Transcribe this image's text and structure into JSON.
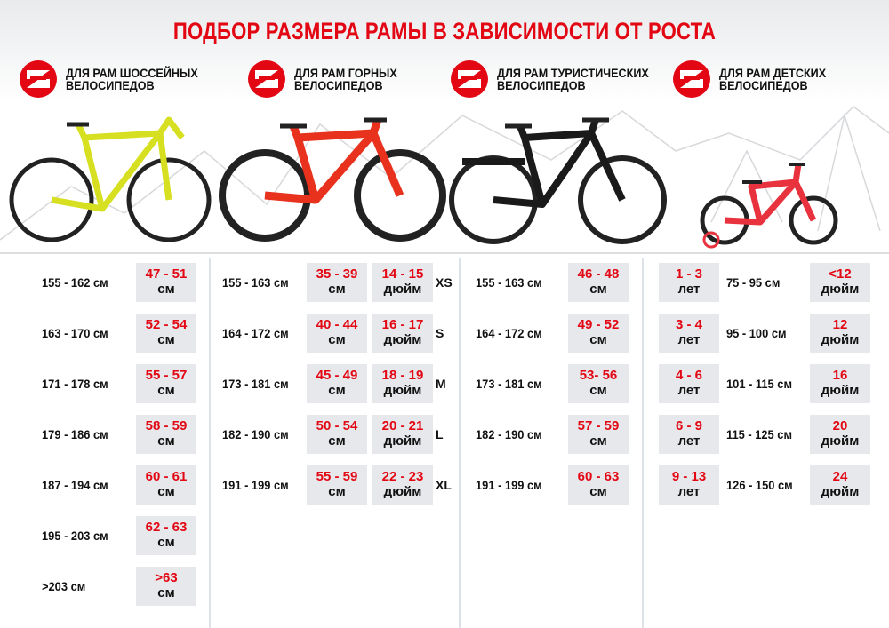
{
  "title": "ПОДБОР РАЗМЕРА РАМЫ В ЗАВИСИМОСТИ ОТ РОСТА",
  "colors": {
    "accent": "#e30613",
    "box": "#e6e8eb"
  },
  "categories": [
    {
      "label": "Для рам шоссейных велосипедов",
      "icon": "brand-logo-icon"
    },
    {
      "label": "Для рам горных велосипедов",
      "icon": "brand-logo-icon"
    },
    {
      "label": "Для рам туристических велосипедов",
      "icon": "brand-logo-icon"
    },
    {
      "label": "Для рам детских велосипедов",
      "icon": "brand-logo-icon"
    }
  ],
  "road": [
    {
      "height": "155 - 162 см",
      "frame": "47 - 51",
      "unit": "см"
    },
    {
      "height": "163 - 170 см",
      "frame": "52 - 54",
      "unit": "см"
    },
    {
      "height": "171 - 178 см",
      "frame": "55 - 57",
      "unit": "см"
    },
    {
      "height": "179 - 186 см",
      "frame": "58 - 59",
      "unit": "см"
    },
    {
      "height": "187 - 194 см",
      "frame": "60 - 61",
      "unit": "см"
    },
    {
      "height": "195 - 203 см",
      "frame": "62 - 63",
      "unit": "см"
    },
    {
      "height": ">203 см",
      "frame": ">63",
      "unit": "см"
    }
  ],
  "mountain": [
    {
      "height": "155 - 163 см",
      "frame_cm": "35 - 39",
      "unit_cm": "см",
      "frame_in": "14 - 15",
      "unit_in": "дюйм",
      "size": "XS"
    },
    {
      "height": "164 - 172 см",
      "frame_cm": "40 - 44",
      "unit_cm": "см",
      "frame_in": "16 - 17",
      "unit_in": "дюйм",
      "size": "S"
    },
    {
      "height": "173 - 181 см",
      "frame_cm": "45 - 49",
      "unit_cm": "см",
      "frame_in": "18 - 19",
      "unit_in": "дюйм",
      "size": "M"
    },
    {
      "height": "182 - 190 см",
      "frame_cm": "50 - 54",
      "unit_cm": "см",
      "frame_in": "20 - 21",
      "unit_in": "дюйм",
      "size": "L"
    },
    {
      "height": "191 - 199 см",
      "frame_cm": "55 - 59",
      "unit_cm": "см",
      "frame_in": "22 - 23",
      "unit_in": "дюйм",
      "size": "XL"
    }
  ],
  "touring": [
    {
      "height": "155 - 163 см",
      "frame": "46 - 48",
      "unit": "см"
    },
    {
      "height": "164 - 172 см",
      "frame": "49 - 52",
      "unit": "см"
    },
    {
      "height": "173 - 181 см",
      "frame": "53- 56",
      "unit": "см"
    },
    {
      "height": "182 - 190 см",
      "frame": "57 - 59",
      "unit": "см"
    },
    {
      "height": "191 - 199 см",
      "frame": "60 - 63",
      "unit": "см"
    }
  ],
  "kids": [
    {
      "age": "1 - 3",
      "age_unit": "лет",
      "height": "75 - 95 см",
      "wheel": "<12",
      "wheel_unit": "дюйм"
    },
    {
      "age": "3 - 4",
      "age_unit": "лет",
      "height": "95 - 100 см",
      "wheel": "12",
      "wheel_unit": "дюйм"
    },
    {
      "age": "4 - 6",
      "age_unit": "лет",
      "height": "101 - 115 см",
      "wheel": "16",
      "wheel_unit": "дюйм"
    },
    {
      "age": "6 - 9",
      "age_unit": "лет",
      "height": "115 - 125 см",
      "wheel": "20",
      "wheel_unit": "дюйм"
    },
    {
      "age": "9 - 13",
      "age_unit": "лет",
      "height": "126 - 150 см",
      "wheel": "24",
      "wheel_unit": "дюйм"
    }
  ]
}
